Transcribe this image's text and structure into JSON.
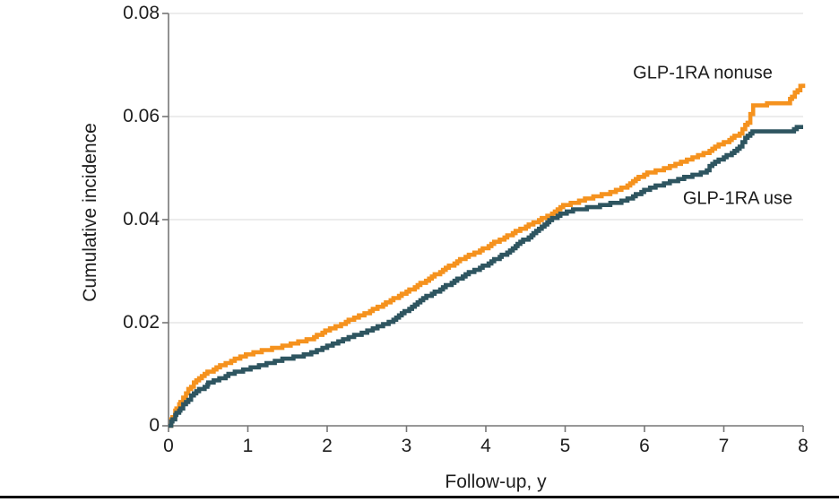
{
  "figure": {
    "background": "#ffffff",
    "bottom_rule_color": "#0a0a0a"
  },
  "colors": {
    "axis_line": "#767676",
    "gridline": "#e0e0e0",
    "text": "#1e1e1e",
    "nonuse_orange": "#f5921e",
    "use_teal": "#2e5560"
  },
  "chart_data": {
    "type": "line",
    "subtype": "step-cumulative-incidence",
    "title": "",
    "xlabel": "Follow-up, y",
    "ylabel": "Cumulative incidence",
    "xlim": [
      0,
      8
    ],
    "ylim": [
      0,
      0.08
    ],
    "x_ticks": [
      0,
      1,
      2,
      3,
      4,
      5,
      6,
      7,
      8
    ],
    "x_tick_labels": [
      "0",
      "1",
      "2",
      "3",
      "4",
      "5",
      "6",
      "7",
      "8"
    ],
    "y_ticks": [
      0,
      0.02,
      0.04,
      0.06,
      0.08
    ],
    "y_tick_labels": [
      "0",
      "0.02",
      "0.04",
      "0.06",
      "0.08"
    ],
    "grid": "horizontal",
    "legend_position": "inline-curve-labels",
    "series": [
      {
        "name": "GLP-1RA nonuse",
        "color": "#f5921e",
        "points": [
          [
            0,
            0
          ],
          [
            0.05,
            0.0018
          ],
          [
            0.1,
            0.0034
          ],
          [
            0.15,
            0.0048
          ],
          [
            0.25,
            0.0071
          ],
          [
            0.35,
            0.0088
          ],
          [
            0.5,
            0.0104
          ],
          [
            0.65,
            0.0116
          ],
          [
            0.8,
            0.0127
          ],
          [
            1.0,
            0.0138
          ],
          [
            1.2,
            0.0146
          ],
          [
            1.4,
            0.0153
          ],
          [
            1.6,
            0.0161
          ],
          [
            1.8,
            0.017
          ],
          [
            2.0,
            0.0185
          ],
          [
            2.2,
            0.0199
          ],
          [
            2.4,
            0.0213
          ],
          [
            2.6,
            0.0227
          ],
          [
            2.8,
            0.0243
          ],
          [
            3.0,
            0.026
          ],
          [
            3.25,
            0.0282
          ],
          [
            3.5,
            0.0307
          ],
          [
            3.75,
            0.0328
          ],
          [
            4.0,
            0.0346
          ],
          [
            4.2,
            0.0363
          ],
          [
            4.4,
            0.0378
          ],
          [
            4.6,
            0.0393
          ],
          [
            4.8,
            0.0409
          ],
          [
            5.0,
            0.0429
          ],
          [
            5.25,
            0.0439
          ],
          [
            5.5,
            0.0449
          ],
          [
            5.75,
            0.0464
          ],
          [
            6.0,
            0.0489
          ],
          [
            6.25,
            0.0499
          ],
          [
            6.5,
            0.0513
          ],
          [
            6.75,
            0.0528
          ],
          [
            6.9,
            0.0542
          ],
          [
            7.0,
            0.0549
          ],
          [
            7.1,
            0.0557
          ],
          [
            7.2,
            0.0568
          ],
          [
            7.3,
            0.059
          ],
          [
            7.37,
            0.0622
          ],
          [
            7.8,
            0.0627
          ],
          [
            7.86,
            0.0639
          ],
          [
            7.93,
            0.0653
          ],
          [
            8.0,
            0.0663
          ]
        ]
      },
      {
        "name": "GLP-1RA use",
        "color": "#2e5560",
        "points": [
          [
            0,
            0
          ],
          [
            0.05,
            0.0012
          ],
          [
            0.1,
            0.0024
          ],
          [
            0.15,
            0.0034
          ],
          [
            0.25,
            0.0052
          ],
          [
            0.35,
            0.0066
          ],
          [
            0.5,
            0.0082
          ],
          [
            0.65,
            0.0092
          ],
          [
            0.8,
            0.0102
          ],
          [
            1.0,
            0.0111
          ],
          [
            1.2,
            0.0119
          ],
          [
            1.4,
            0.0127
          ],
          [
            1.6,
            0.0134
          ],
          [
            1.8,
            0.0141
          ],
          [
            2.0,
            0.0155
          ],
          [
            2.2,
            0.0166
          ],
          [
            2.4,
            0.0178
          ],
          [
            2.6,
            0.019
          ],
          [
            2.8,
            0.0203
          ],
          [
            3.0,
            0.0224
          ],
          [
            3.25,
            0.025
          ],
          [
            3.5,
            0.0272
          ],
          [
            3.75,
            0.0294
          ],
          [
            4.0,
            0.0312
          ],
          [
            4.2,
            0.033
          ],
          [
            4.4,
            0.0352
          ],
          [
            4.6,
            0.0373
          ],
          [
            4.8,
            0.0398
          ],
          [
            4.95,
            0.0412
          ],
          [
            5.1,
            0.0418
          ],
          [
            5.3,
            0.0423
          ],
          [
            5.5,
            0.0428
          ],
          [
            5.75,
            0.0437
          ],
          [
            6.0,
            0.0457
          ],
          [
            6.25,
            0.047
          ],
          [
            6.5,
            0.0481
          ],
          [
            6.75,
            0.0492
          ],
          [
            6.9,
            0.0514
          ],
          [
            7.0,
            0.052
          ],
          [
            7.1,
            0.0529
          ],
          [
            7.2,
            0.0543
          ],
          [
            7.3,
            0.0563
          ],
          [
            7.36,
            0.0571
          ],
          [
            7.85,
            0.0572
          ],
          [
            7.92,
            0.0579
          ],
          [
            8.0,
            0.0581
          ]
        ]
      }
    ]
  }
}
